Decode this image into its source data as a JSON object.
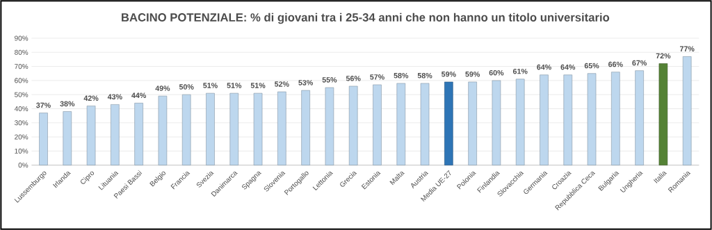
{
  "chart_data": {
    "type": "bar",
    "title": "BACINO POTENZIALE: % di giovani tra i 25-34 anni che non hanno un titolo universitario",
    "categories": [
      "Lussemburgo",
      "Irlanda",
      "Cipro",
      "Lituania",
      "Paesi Bassi",
      "Belgio",
      "Francia",
      "Svezia",
      "Danimarca",
      "Spagna",
      "Slovenia",
      "Portogallo",
      "Lettonia",
      "Grecia",
      "Estonia",
      "Malta",
      "Austria",
      "Media UE-27",
      "Polonia",
      "Finlandia",
      "Slovacchia",
      "Germania",
      "Croazia",
      "Repubblica Ceca",
      "Bulgaria",
      "Ungheria",
      "Italia",
      "Romania"
    ],
    "values": [
      37,
      38,
      42,
      43,
      44,
      49,
      50,
      51,
      51,
      51,
      52,
      53,
      55,
      56,
      57,
      58,
      58,
      59,
      59,
      60,
      61,
      64,
      64,
      65,
      66,
      67,
      72,
      77
    ],
    "value_labels": [
      "37%",
      "38%",
      "42%",
      "43%",
      "44%",
      "49%",
      "50%",
      "51%",
      "51%",
      "51%",
      "52%",
      "53%",
      "55%",
      "56%",
      "57%",
      "58%",
      "58%",
      "59%",
      "59%",
      "60%",
      "61%",
      "64%",
      "64%",
      "65%",
      "66%",
      "67%",
      "72%",
      "77%"
    ],
    "colors": [
      "#bdd7ee",
      "#bdd7ee",
      "#bdd7ee",
      "#bdd7ee",
      "#bdd7ee",
      "#bdd7ee",
      "#bdd7ee",
      "#bdd7ee",
      "#bdd7ee",
      "#bdd7ee",
      "#bdd7ee",
      "#bdd7ee",
      "#bdd7ee",
      "#bdd7ee",
      "#bdd7ee",
      "#bdd7ee",
      "#bdd7ee",
      "#2e75b6",
      "#bdd7ee",
      "#bdd7ee",
      "#bdd7ee",
      "#bdd7ee",
      "#bdd7ee",
      "#bdd7ee",
      "#bdd7ee",
      "#bdd7ee",
      "#548235",
      "#bdd7ee"
    ],
    "ylim": [
      0,
      90
    ],
    "yticks": [
      {
        "value": 0,
        "label": "0%"
      },
      {
        "value": 10,
        "label": "10%"
      },
      {
        "value": 20,
        "label": "20%"
      },
      {
        "value": 30,
        "label": "30%"
      },
      {
        "value": 40,
        "label": "40%"
      },
      {
        "value": 50,
        "label": "50%"
      },
      {
        "value": 60,
        "label": "60%"
      },
      {
        "value": 70,
        "label": "70%"
      },
      {
        "value": 80,
        "label": "80%"
      },
      {
        "value": 90,
        "label": "90%"
      }
    ],
    "grid": "y"
  }
}
